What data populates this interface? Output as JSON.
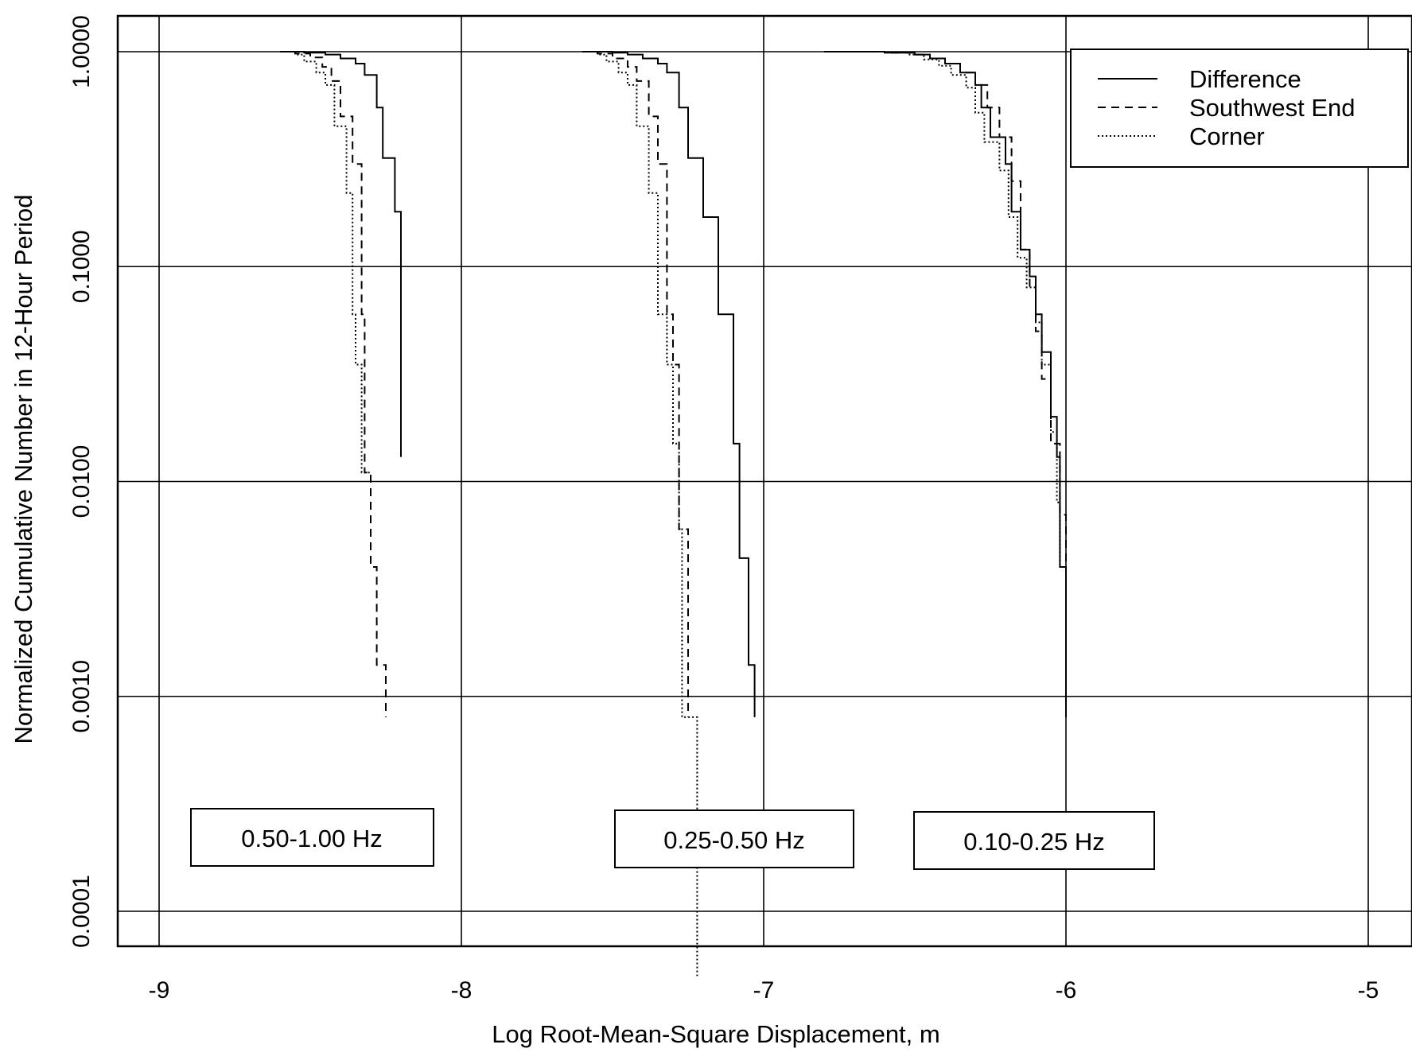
{
  "chart_data": {
    "type": "line",
    "xlabel": "Log Root-Mean-Square Displacement, m",
    "ylabel": "Normalized Cumulative Number in 12-Hour Period",
    "xlim": [
      -9.15,
      5.15
    ],
    "ylim": [
      5e-05,
      1.0
    ],
    "y_scale": "log",
    "x_ticks": [
      {
        "value": -9,
        "label": "-9"
      },
      {
        "value": -8,
        "label": "-8"
      },
      {
        "value": -7,
        "label": "-7"
      },
      {
        "value": -6,
        "label": "-6"
      },
      {
        "value": -5,
        "label": "-5"
      }
    ],
    "y_ticks": [
      {
        "value": 1.0,
        "label": "1.0000"
      },
      {
        "value": 0.1,
        "label": "0.1000"
      },
      {
        "value": 0.01,
        "label": "0.0100"
      },
      {
        "value": 0.001,
        "label": "0.0010"
      },
      {
        "value": 0.0001,
        "label": "0.0001"
      }
    ],
    "grid": true,
    "legend_position": "top-right",
    "legend": [
      {
        "label": "Difference",
        "dash": "solid"
      },
      {
        "label": "Southwest End",
        "dash": "dashed"
      },
      {
        "label": "Corner",
        "dash": "dotted"
      }
    ],
    "bands": [
      {
        "label": "0.50-1.00 Hz",
        "series": [
          {
            "name": "Difference",
            "dash": "solid",
            "points": [
              [
                -8.6,
                1.0
              ],
              [
                -8.52,
                0.99
              ],
              [
                -8.45,
                0.97
              ],
              [
                -8.4,
                0.93
              ],
              [
                -8.35,
                0.88
              ],
              [
                -8.32,
                0.78
              ],
              [
                -8.28,
                0.55
              ],
              [
                -8.26,
                0.32
              ],
              [
                -8.22,
                0.18
              ],
              [
                -8.2,
                0.06
              ],
              [
                -8.2,
                0.013
              ]
            ]
          },
          {
            "name": "Southwest End",
            "dash": "dashed",
            "points": [
              [
                -8.6,
                1.0
              ],
              [
                -8.55,
                0.98
              ],
              [
                -8.5,
                0.94
              ],
              [
                -8.46,
                0.85
              ],
              [
                -8.43,
                0.73
              ],
              [
                -8.4,
                0.5
              ],
              [
                -8.36,
                0.3
              ],
              [
                -8.33,
                0.06
              ],
              [
                -8.32,
                0.035
              ],
              [
                -8.32,
                0.011
              ],
              [
                -8.3,
                0.004
              ],
              [
                -8.28,
                0.0014
              ],
              [
                -8.25,
                0.0012
              ],
              [
                -8.25,
                0.0008
              ]
            ]
          },
          {
            "name": "Corner",
            "dash": "dotted",
            "points": [
              [
                -8.6,
                1.0
              ],
              [
                -8.55,
                0.97
              ],
              [
                -8.52,
                0.9
              ],
              [
                -8.48,
                0.8
              ],
              [
                -8.45,
                0.7
              ],
              [
                -8.42,
                0.45
              ],
              [
                -8.38,
                0.22
              ],
              [
                -8.36,
                0.06
              ],
              [
                -8.35,
                0.035
              ],
              [
                -8.33,
                0.011
              ],
              [
                -8.3,
                0.011
              ]
            ]
          }
        ]
      },
      {
        "label": "0.25-0.50 Hz",
        "series": [
          {
            "name": "Difference",
            "dash": "solid",
            "points": [
              [
                -7.6,
                1.0
              ],
              [
                -7.5,
                0.99
              ],
              [
                -7.45,
                0.97
              ],
              [
                -7.4,
                0.93
              ],
              [
                -7.35,
                0.88
              ],
              [
                -7.32,
                0.8
              ],
              [
                -7.28,
                0.55
              ],
              [
                -7.25,
                0.32
              ],
              [
                -7.2,
                0.17
              ],
              [
                -7.15,
                0.06
              ],
              [
                -7.1,
                0.015
              ],
              [
                -7.08,
                0.0044
              ],
              [
                -7.05,
                0.0014
              ],
              [
                -7.03,
                0.0008
              ]
            ]
          },
          {
            "name": "Southwest End",
            "dash": "dashed",
            "points": [
              [
                -7.6,
                1.0
              ],
              [
                -7.55,
                0.98
              ],
              [
                -7.5,
                0.93
              ],
              [
                -7.45,
                0.85
              ],
              [
                -7.42,
                0.73
              ],
              [
                -7.38,
                0.5
              ],
              [
                -7.35,
                0.3
              ],
              [
                -7.32,
                0.06
              ],
              [
                -7.3,
                0.035
              ],
              [
                -7.28,
                0.025
              ],
              [
                -7.28,
                0.006
              ],
              [
                -7.25,
                0.006
              ],
              [
                -7.25,
                0.0008
              ]
            ]
          },
          {
            "name": "Corner",
            "dash": "dotted",
            "points": [
              [
                -7.6,
                1.0
              ],
              [
                -7.55,
                0.97
              ],
              [
                -7.52,
                0.9
              ],
              [
                -7.48,
                0.8
              ],
              [
                -7.45,
                0.7
              ],
              [
                -7.42,
                0.45
              ],
              [
                -7.38,
                0.22
              ],
              [
                -7.35,
                0.06
              ],
              [
                -7.32,
                0.035
              ],
              [
                -7.3,
                0.015
              ],
              [
                -7.28,
                0.006
              ],
              [
                -7.27,
                0.0008
              ],
              [
                -7.22,
                0.0007
              ],
              [
                -7.22,
                5e-05
              ]
            ]
          }
        ]
      },
      {
        "label": "0.10-0.25 Hz",
        "series": [
          {
            "name": "Difference",
            "dash": "solid",
            "points": [
              [
                -6.8,
                1.0
              ],
              [
                -6.6,
                0.99
              ],
              [
                -6.5,
                0.97
              ],
              [
                -6.45,
                0.93
              ],
              [
                -6.4,
                0.88
              ],
              [
                -6.35,
                0.8
              ],
              [
                -6.3,
                0.7
              ],
              [
                -6.28,
                0.55
              ],
              [
                -6.25,
                0.4
              ],
              [
                -6.2,
                0.3
              ],
              [
                -6.18,
                0.18
              ],
              [
                -6.15,
                0.12
              ],
              [
                -6.12,
                0.09
              ],
              [
                -6.1,
                0.06
              ],
              [
                -6.08,
                0.04
              ],
              [
                -6.05,
                0.02
              ],
              [
                -6.03,
                0.013
              ],
              [
                -6.02,
                0.004
              ],
              [
                -6.0,
                0.004
              ],
              [
                -6.0,
                0.0008
              ]
            ]
          },
          {
            "name": "Southwest End",
            "dash": "dashed",
            "points": [
              [
                -6.8,
                1.0
              ],
              [
                -6.6,
                0.99
              ],
              [
                -6.5,
                0.97
              ],
              [
                -6.45,
                0.93
              ],
              [
                -6.4,
                0.88
              ],
              [
                -6.35,
                0.8
              ],
              [
                -6.3,
                0.7
              ],
              [
                -6.26,
                0.55
              ],
              [
                -6.22,
                0.4
              ],
              [
                -6.18,
                0.25
              ],
              [
                -6.15,
                0.12
              ],
              [
                -6.12,
                0.08
              ],
              [
                -6.1,
                0.05
              ],
              [
                -6.08,
                0.03
              ],
              [
                -6.05,
                0.015
              ],
              [
                -6.02,
                0.007
              ],
              [
                -6.0,
                0.004
              ],
              [
                -6.0,
                0.004
              ]
            ]
          },
          {
            "name": "Corner",
            "dash": "dotted",
            "points": [
              [
                -6.8,
                1.0
              ],
              [
                -6.6,
                0.99
              ],
              [
                -6.52,
                0.97
              ],
              [
                -6.47,
                0.92
              ],
              [
                -6.42,
                0.86
              ],
              [
                -6.38,
                0.78
              ],
              [
                -6.33,
                0.68
              ],
              [
                -6.3,
                0.52
              ],
              [
                -6.27,
                0.38
              ],
              [
                -6.22,
                0.28
              ],
              [
                -6.19,
                0.17
              ],
              [
                -6.16,
                0.11
              ],
              [
                -6.13,
                0.08
              ],
              [
                -6.1,
                0.055
              ],
              [
                -6.08,
                0.035
              ],
              [
                -6.05,
                0.017
              ],
              [
                -6.03,
                0.008
              ],
              [
                -6.02,
                0.004
              ]
            ]
          }
        ]
      }
    ]
  }
}
